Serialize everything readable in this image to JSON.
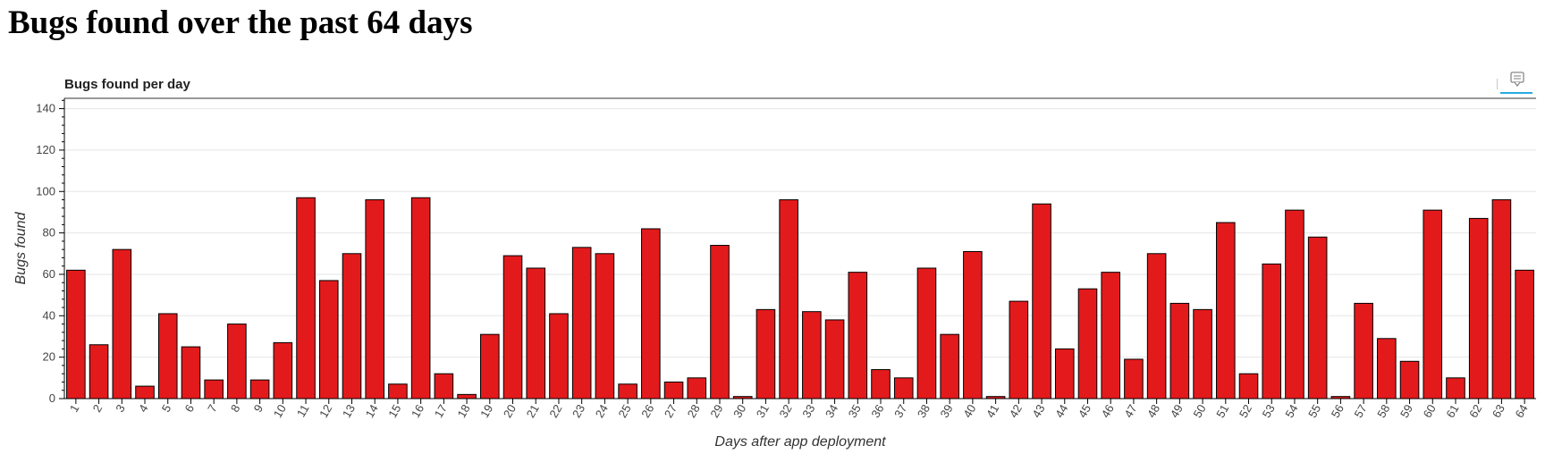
{
  "page": {
    "title": "Bugs found over the past 64 days"
  },
  "toolbar": {
    "tool_icon": "hover-tooltip-icon",
    "active_color": "#26aae1"
  },
  "chart_data": {
    "type": "bar",
    "title": "Bugs found per day",
    "xlabel": "Days after app deployment",
    "ylabel": "Bugs found",
    "ylim": [
      0,
      145
    ],
    "yticks": [
      0,
      20,
      40,
      60,
      80,
      100,
      120,
      140
    ],
    "grid": "horizontal",
    "bar_color": "#e31a1c",
    "bar_edge_color": "#000000",
    "categories": [
      "1",
      "2",
      "3",
      "4",
      "5",
      "6",
      "7",
      "8",
      "9",
      "10",
      "11",
      "12",
      "13",
      "14",
      "15",
      "16",
      "17",
      "18",
      "19",
      "20",
      "21",
      "22",
      "23",
      "24",
      "25",
      "26",
      "27",
      "28",
      "29",
      "30",
      "31",
      "32",
      "33",
      "34",
      "35",
      "36",
      "37",
      "38",
      "39",
      "40",
      "41",
      "42",
      "43",
      "44",
      "45",
      "46",
      "47",
      "48",
      "49",
      "50",
      "51",
      "52",
      "53",
      "54",
      "55",
      "56",
      "57",
      "58",
      "59",
      "60",
      "61",
      "62",
      "63",
      "64"
    ],
    "values": [
      62,
      26,
      72,
      6,
      41,
      25,
      9,
      36,
      9,
      27,
      97,
      57,
      70,
      96,
      7,
      97,
      12,
      2,
      31,
      69,
      63,
      41,
      73,
      70,
      7,
      82,
      8,
      10,
      74,
      1,
      43,
      96,
      42,
      38,
      61,
      14,
      10,
      63,
      31,
      71,
      1,
      47,
      94,
      24,
      53,
      61,
      19,
      70,
      46,
      43,
      85,
      12,
      65,
      91,
      78,
      1,
      46,
      29,
      18,
      91,
      10,
      87,
      96,
      62
    ]
  }
}
